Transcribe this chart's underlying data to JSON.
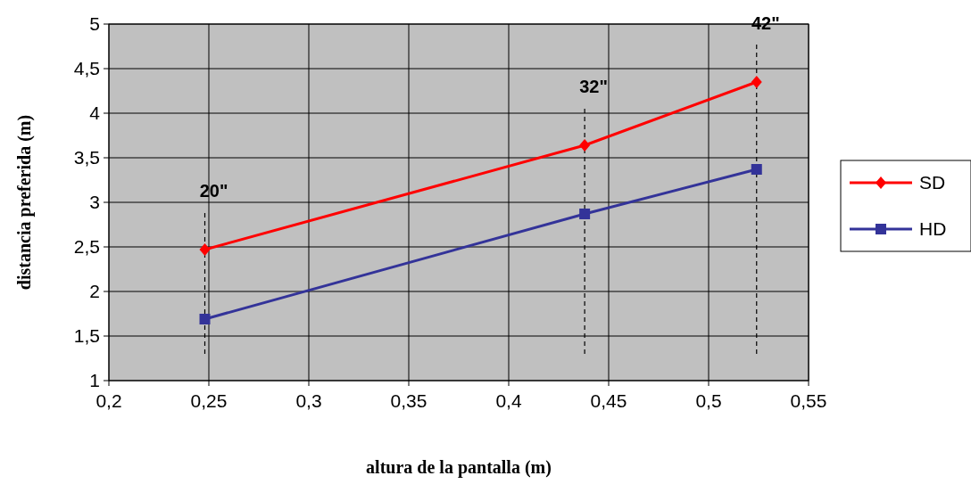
{
  "chart_data": {
    "type": "line",
    "xlabel": "altura de la pantalla  (m)",
    "ylabel": "distancia preferida (m)",
    "xlim": [
      0.2,
      0.55
    ],
    "xticks": [
      {
        "value": 0.2,
        "label": "0,2"
      },
      {
        "value": 0.25,
        "label": "0,25"
      },
      {
        "value": 0.3,
        "label": "0,3"
      },
      {
        "value": 0.35,
        "label": "0,35"
      },
      {
        "value": 0.4,
        "label": "0,4"
      },
      {
        "value": 0.45,
        "label": "0,45"
      },
      {
        "value": 0.5,
        "label": "0,5"
      },
      {
        "value": 0.55,
        "label": "0,55"
      }
    ],
    "ylim": [
      1,
      5
    ],
    "yticks": [
      1,
      {
        "value": 1.5,
        "label": "1,5"
      },
      2,
      {
        "value": 2.5,
        "label": "2,5"
      },
      3,
      {
        "value": 3.5,
        "label": "3,5"
      },
      4,
      {
        "value": 4.5,
        "label": "4,5"
      },
      5
    ],
    "x": [
      0.248,
      0.438,
      0.524
    ],
    "series": [
      {
        "name": "SD",
        "color": "#ff0000",
        "marker": "diamond",
        "values": [
          2.47,
          3.64,
          4.35
        ]
      },
      {
        "name": "HD",
        "color": "#333399",
        "marker": "square",
        "values": [
          1.69,
          2.87,
          3.37
        ]
      }
    ],
    "ref_lines": [
      {
        "axis": "x",
        "value": 0.248,
        "line_style": "dashed",
        "color": "#000000"
      },
      {
        "axis": "x",
        "value": 0.438,
        "line_style": "dashed",
        "color": "#000000"
      },
      {
        "axis": "x",
        "value": 0.524,
        "line_style": "dashed",
        "color": "#000000"
      }
    ],
    "annotations": [
      "20\"",
      "32\"",
      "42\""
    ],
    "grid": true,
    "legend": "right",
    "line_style": "solid"
  }
}
